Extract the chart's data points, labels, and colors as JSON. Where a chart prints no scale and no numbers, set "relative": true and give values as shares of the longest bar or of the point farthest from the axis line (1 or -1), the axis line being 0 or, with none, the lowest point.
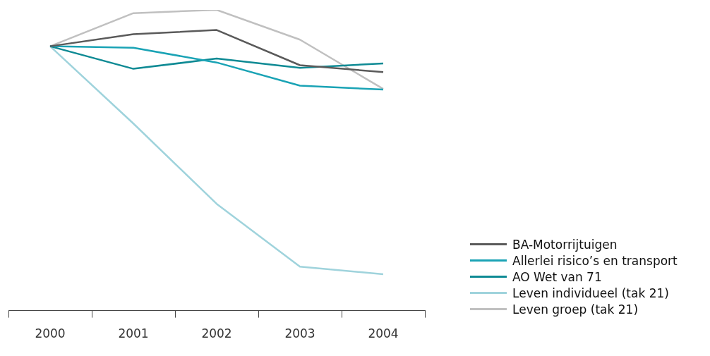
{
  "chart_data": {
    "type": "line",
    "relative": true,
    "legend": "right",
    "categories": [
      "2000",
      "2001",
      "2002",
      "2003",
      "2004"
    ],
    "series": [
      {
        "name": "BA-Motorrijtuigen",
        "color": "#5a5a5a",
        "values": [
          0.879,
          0.919,
          0.933,
          0.816,
          0.793
        ]
      },
      {
        "name": "Allerlei risico’s en transport",
        "color": "#1aa3b5",
        "values": [
          0.879,
          0.874,
          0.825,
          0.748,
          0.735
        ]
      },
      {
        "name": "AO Wet van 71",
        "color": "#0e8a94",
        "values": [
          0.879,
          0.804,
          0.838,
          0.807,
          0.822
        ]
      },
      {
        "name": "Leven individueel (tak 21)",
        "color": "#9fd3dc",
        "values": [
          0.879,
          0.622,
          0.355,
          0.146,
          0.121
        ]
      },
      {
        "name": "Leven groep (tak 21)",
        "color": "#c0c0c0",
        "values": [
          0.879,
          0.989,
          1.0,
          0.901,
          0.737
        ]
      }
    ]
  }
}
